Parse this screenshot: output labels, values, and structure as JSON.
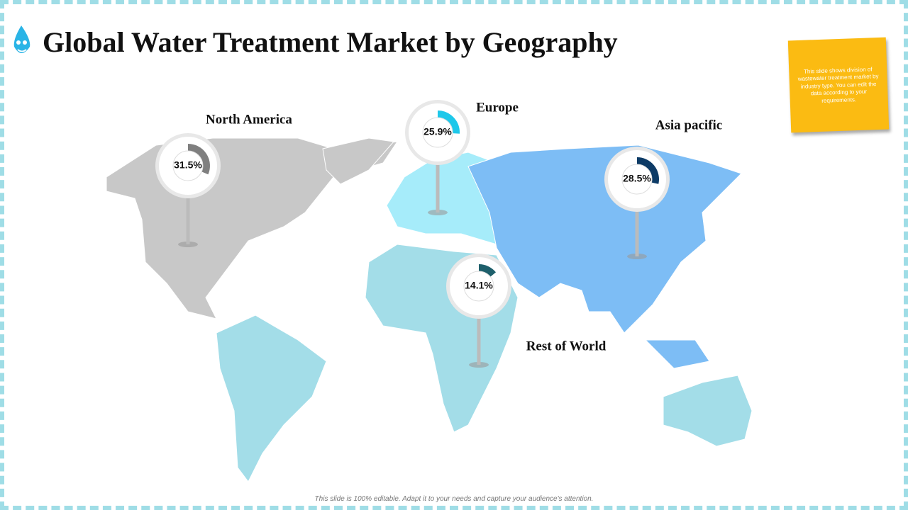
{
  "title": "Global Water Treatment Market by Geography",
  "note": "This slide shows division of wastewater treatment market by industry type. You can edit the data according to your requirements.",
  "footer": "This slide is 100% editable. Adapt it to your needs and capture your audience's attention.",
  "regions": [
    {
      "name": "North America",
      "value": 31.5,
      "value_label": "31.5%",
      "color": "#7f7f7f",
      "map_color": "#c8c8c8"
    },
    {
      "name": "Europe",
      "value": 25.9,
      "value_label": "25.9%",
      "color": "#1ec8ea",
      "map_color": "#a6ecfa"
    },
    {
      "name": "Asia pacific",
      "value": 28.5,
      "value_label": "28.5%",
      "color": "#0d3b66",
      "map_color": "#7dbdf5"
    },
    {
      "name": "Rest of World",
      "value": 14.1,
      "value_label": "14.1%",
      "color": "#1e5f6b",
      "map_color": "#a3dde8"
    }
  ]
}
